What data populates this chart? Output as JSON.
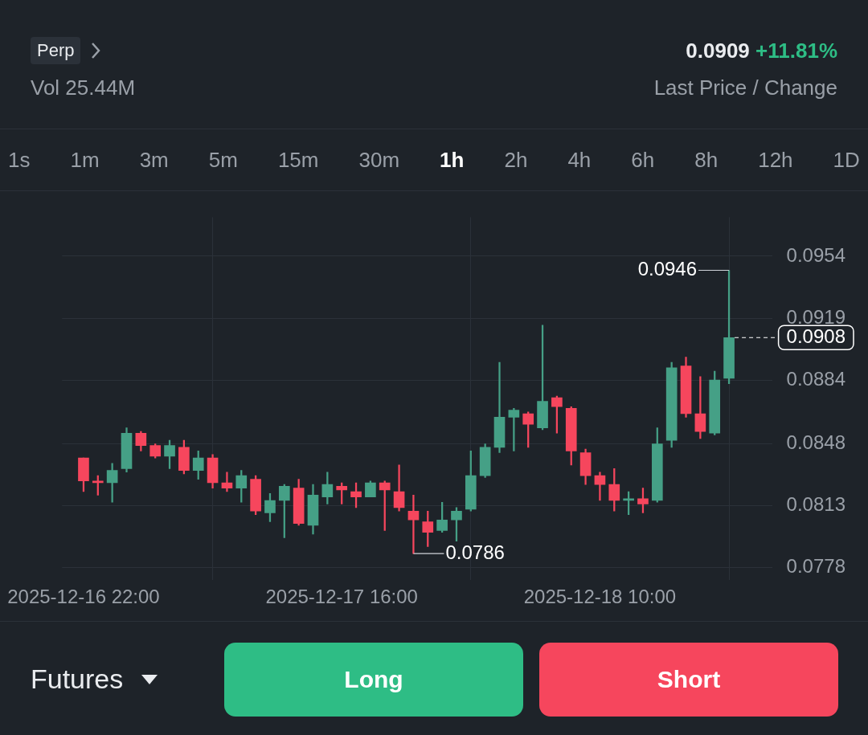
{
  "chart_data": {
    "type": "candlestick",
    "subtitle": "Vol 25.44M",
    "x": [
      "2025-12-16T22:00",
      "2025-12-16T23:00",
      "2025-12-17T00:00",
      "2025-12-17T01:00",
      "2025-12-17T02:00",
      "2025-12-17T03:00",
      "2025-12-17T04:00",
      "2025-12-17T05:00",
      "2025-12-17T06:00",
      "2025-12-17T07:00",
      "2025-12-17T08:00",
      "2025-12-17T09:00",
      "2025-12-17T10:00",
      "2025-12-17T11:00",
      "2025-12-17T12:00",
      "2025-12-17T13:00",
      "2025-12-17T14:00",
      "2025-12-17T15:00",
      "2025-12-17T16:00",
      "2025-12-17T17:00",
      "2025-12-17T18:00",
      "2025-12-17T19:00",
      "2025-12-17T20:00",
      "2025-12-17T21:00",
      "2025-12-17T22:00",
      "2025-12-17T23:00",
      "2025-12-18T00:00",
      "2025-12-18T01:00",
      "2025-12-18T02:00",
      "2025-12-18T03:00",
      "2025-12-18T04:00",
      "2025-12-18T05:00",
      "2025-12-18T06:00",
      "2025-12-18T07:00",
      "2025-12-18T08:00",
      "2025-12-18T09:00",
      "2025-12-18T10:00",
      "2025-12-18T11:00",
      "2025-12-18T12:00",
      "2025-12-18T13:00",
      "2025-12-18T14:00",
      "2025-12-18T15:00",
      "2025-12-18T16:00",
      "2025-12-18T17:00",
      "2025-12-18T18:00",
      "2025-12-18T19:00"
    ],
    "ohlc": [
      [
        0.084,
        0.084,
        0.0821,
        0.0827
      ],
      [
        0.0827,
        0.083,
        0.0819,
        0.0826
      ],
      [
        0.0826,
        0.0837,
        0.0815,
        0.0833
      ],
      [
        0.0834,
        0.0857,
        0.0832,
        0.0854
      ],
      [
        0.0854,
        0.0855,
        0.0844,
        0.0847
      ],
      [
        0.0847,
        0.0848,
        0.084,
        0.0841
      ],
      [
        0.0841,
        0.085,
        0.0834,
        0.0847
      ],
      [
        0.0846,
        0.085,
        0.0831,
        0.0833
      ],
      [
        0.0833,
        0.0844,
        0.0828,
        0.084
      ],
      [
        0.084,
        0.0842,
        0.0823,
        0.0826
      ],
      [
        0.0826,
        0.0832,
        0.0821,
        0.0823
      ],
      [
        0.0823,
        0.0833,
        0.0815,
        0.083
      ],
      [
        0.0828,
        0.083,
        0.0808,
        0.081
      ],
      [
        0.0809,
        0.082,
        0.0804,
        0.0816
      ],
      [
        0.0816,
        0.0825,
        0.0795,
        0.0824
      ],
      [
        0.0823,
        0.0828,
        0.0802,
        0.0803
      ],
      [
        0.0802,
        0.0825,
        0.0797,
        0.0819
      ],
      [
        0.0818,
        0.0832,
        0.0814,
        0.0825
      ],
      [
        0.0824,
        0.0826,
        0.0814,
        0.0822
      ],
      [
        0.0821,
        0.0826,
        0.0812,
        0.0818
      ],
      [
        0.0818,
        0.0827,
        0.0818,
        0.0826
      ],
      [
        0.0826,
        0.0827,
        0.0799,
        0.0822
      ],
      [
        0.0821,
        0.0836,
        0.081,
        0.0812
      ],
      [
        0.081,
        0.0819,
        0.0786,
        0.0805
      ],
      [
        0.0804,
        0.081,
        0.079,
        0.0798
      ],
      [
        0.0799,
        0.0815,
        0.0798,
        0.0805
      ],
      [
        0.0805,
        0.0812,
        0.0793,
        0.081
      ],
      [
        0.0811,
        0.0844,
        0.081,
        0.083
      ],
      [
        0.083,
        0.0848,
        0.0829,
        0.0846
      ],
      [
        0.0846,
        0.0894,
        0.0843,
        0.0863
      ],
      [
        0.0863,
        0.0868,
        0.0844,
        0.0867
      ],
      [
        0.0865,
        0.0866,
        0.0846,
        0.0859
      ],
      [
        0.0857,
        0.0915,
        0.0856,
        0.0872
      ],
      [
        0.0874,
        0.0875,
        0.0854,
        0.0869
      ],
      [
        0.0868,
        0.0869,
        0.0836,
        0.0844
      ],
      [
        0.0843,
        0.0845,
        0.0825,
        0.083
      ],
      [
        0.083,
        0.0832,
        0.0816,
        0.0825
      ],
      [
        0.0825,
        0.0834,
        0.081,
        0.0816
      ],
      [
        0.0816,
        0.0821,
        0.0808,
        0.0817
      ],
      [
        0.0817,
        0.0823,
        0.0809,
        0.0814
      ],
      [
        0.0816,
        0.0857,
        0.0815,
        0.0848
      ],
      [
        0.085,
        0.0894,
        0.0846,
        0.0891
      ],
      [
        0.0892,
        0.0897,
        0.0863,
        0.0865
      ],
      [
        0.0865,
        0.0886,
        0.0851,
        0.0855
      ],
      [
        0.0854,
        0.0889,
        0.0853,
        0.0884
      ],
      [
        0.0885,
        0.0946,
        0.0882,
        0.0908
      ]
    ],
    "colors": [
      "#f6465d",
      "#f6465d",
      "#45a086",
      "#45a086",
      "#f6465d",
      "#f6465d",
      "#45a086",
      "#f6465d",
      "#45a086",
      "#f6465d",
      "#f6465d",
      "#45a086",
      "#f6465d",
      "#45a086",
      "#45a086",
      "#f6465d",
      "#45a086",
      "#45a086",
      "#f6465d",
      "#f6465d",
      "#45a086",
      "#f6465d",
      "#f6465d",
      "#f6465d",
      "#f6465d",
      "#45a086",
      "#45a086",
      "#45a086",
      "#45a086",
      "#45a086",
      "#45a086",
      "#f6465d",
      "#45a086",
      "#f6465d",
      "#f6465d",
      "#f6465d",
      "#f6465d",
      "#f6465d",
      "#45a086",
      "#f6465d",
      "#45a086",
      "#45a086",
      "#f6465d",
      "#f6465d",
      "#45a086",
      "#45a086"
    ],
    "xlim": [
      "2025-12-16T20:30",
      "2025-12-18T22:00"
    ],
    "xticks": [
      {
        "value": "2025-12-16T22:00",
        "label": "2025-12-16 22:00"
      },
      {
        "value": "2025-12-17T16:00",
        "label": "2025-12-17 16:00"
      },
      {
        "value": "2025-12-18T10:00",
        "label": "2025-12-18 10:00"
      }
    ],
    "ylim": [
      0.0771,
      0.0976
    ],
    "yticks": [
      0.0778,
      0.0813,
      0.0848,
      0.0884,
      0.0919,
      0.0954
    ],
    "grid": true,
    "ref_lines": [
      {
        "axis": "y",
        "value": 0.0908,
        "label": "0.0908",
        "line_style": "dashed",
        "color": "#ffffff"
      }
    ],
    "annotations": [
      "Perp",
      "0.0909",
      "+11.81%",
      "Last Price / Change",
      "1s",
      "1m",
      "3m",
      "5m",
      "15m",
      "30m",
      "1h",
      "2h",
      "4h",
      "6h",
      "8h",
      "12h",
      "1D",
      "Futures",
      "Long",
      "Short",
      {
        "text": "0.0946",
        "x": "2025-12-18T19:00",
        "y": 0.0946
      },
      {
        "text": "0.0786",
        "x": "2025-12-17T21:00",
        "y": 0.0786
      }
    ]
  }
}
